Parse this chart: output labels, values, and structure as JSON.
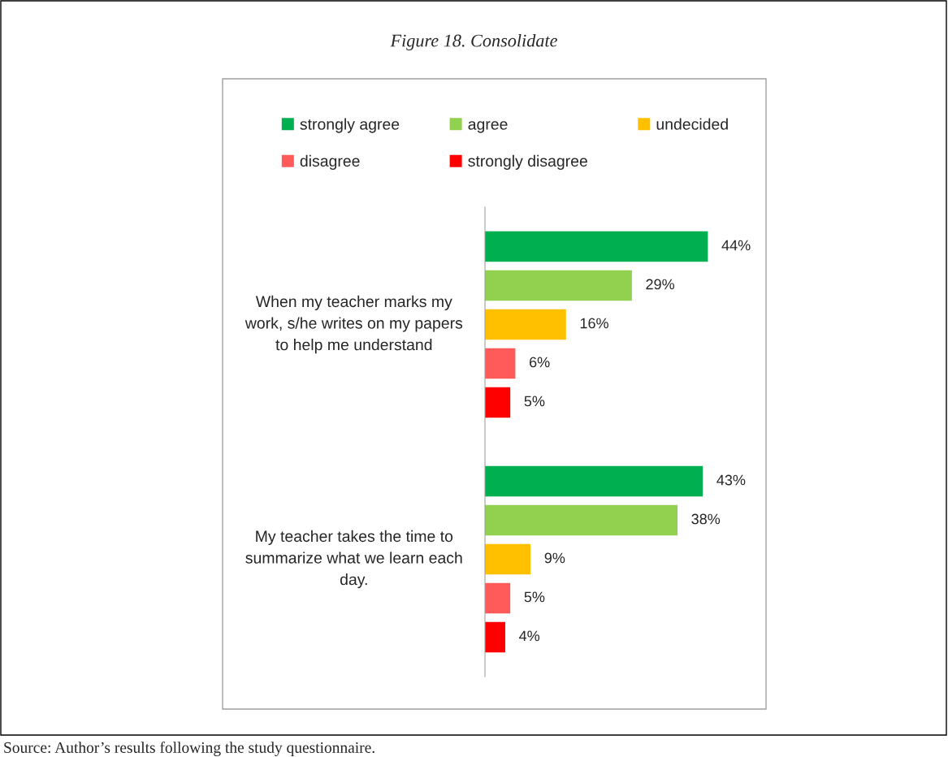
{
  "chart_data": {
    "type": "bar",
    "orientation": "horizontal",
    "title": "Figure 18. Consolidate",
    "categories": [
      "When my teacher marks my work, s/he writes on my papers to help me understand",
      "My teacher takes the time to summarize what we learn each day."
    ],
    "series": [
      {
        "name": "strongly agree",
        "color": "#00b050",
        "values": [
          44,
          43
        ],
        "value_labels": [
          "44%",
          "43%"
        ]
      },
      {
        "name": "agree",
        "color": "#92d050",
        "values": [
          29,
          38
        ],
        "value_labels": [
          "29%",
          "38%"
        ]
      },
      {
        "name": "undecided",
        "color": "#ffc000",
        "values": [
          16,
          9
        ],
        "value_labels": [
          "16%",
          "9%"
        ]
      },
      {
        "name": "disagree",
        "color": "#ff5b5b",
        "values": [
          6,
          5
        ],
        "value_labels": [
          "6%",
          "5%"
        ]
      },
      {
        "name": "strongly disagree",
        "color": "#ff0000",
        "values": [
          5,
          4
        ],
        "value_labels": [
          "5%",
          "4%"
        ]
      }
    ],
    "annotations": [
      "Source: Author’s results following the study questionnaire."
    ],
    "legend": "top",
    "grid": false,
    "tick_labels": "y"
  }
}
